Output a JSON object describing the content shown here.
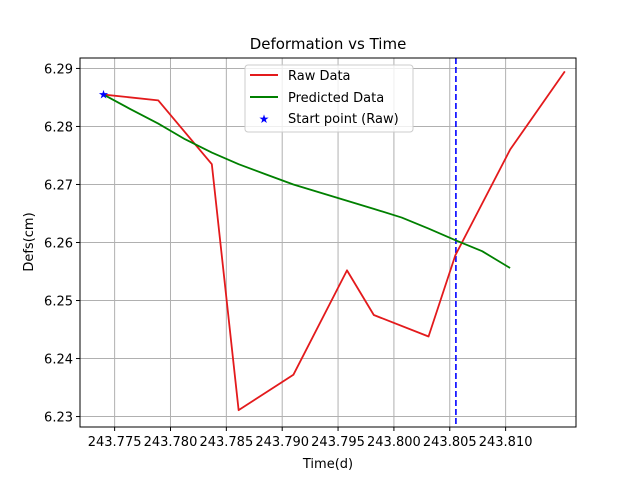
{
  "chart_data": {
    "type": "line",
    "title": "Deformation vs Time",
    "xlabel": "Time(d)",
    "ylabel": "Defs(cm)",
    "xlim": [
      243.7719,
      243.8163
    ],
    "ylim": [
      6.2282,
      6.2918
    ],
    "xticks": [
      243.775,
      243.78,
      243.785,
      243.79,
      243.795,
      243.8,
      243.805,
      243.81
    ],
    "xtick_labels": [
      "243.775",
      "243.780",
      "243.785",
      "243.790",
      "243.795",
      "243.800",
      "243.805",
      "243.810"
    ],
    "yticks": [
      6.23,
      6.24,
      6.25,
      6.26,
      6.27,
      6.28,
      6.29
    ],
    "ytick_labels": [
      "6.23",
      "6.24",
      "6.25",
      "6.26",
      "6.27",
      "6.28",
      "6.29"
    ],
    "grid": true,
    "legend_position": "upper center",
    "series": [
      {
        "name": "Raw Data",
        "color": "#e31a1c",
        "x": [
          243.774,
          243.7789,
          243.7837,
          243.7861,
          243.791,
          243.7958,
          243.7982,
          243.8031,
          243.8055,
          243.8104,
          243.8153
        ],
        "y": [
          6.2855,
          6.2845,
          6.2735,
          6.2311,
          6.2372,
          6.2552,
          6.2475,
          6.2438,
          6.2578,
          6.276,
          6.2895
        ]
      },
      {
        "name": "Predicted Data",
        "color": "#008000",
        "x": [
          243.774,
          243.7764,
          243.7789,
          243.7813,
          243.7837,
          243.7861,
          243.7886,
          243.791,
          243.7934,
          243.7958,
          243.7982,
          243.8007,
          243.8031,
          243.8055,
          243.8079,
          243.8104
        ],
        "y": [
          6.2855,
          6.283,
          6.2805,
          6.2778,
          6.2755,
          6.2735,
          6.2717,
          6.27,
          6.2686,
          6.2672,
          6.2658,
          6.2643,
          6.2624,
          6.2604,
          6.2585,
          6.2556
        ]
      }
    ],
    "start_point": {
      "name": "Start point (Raw)",
      "color": "#0000ff",
      "x": 243.774,
      "y": 6.2855
    },
    "vline": {
      "x": 243.80555,
      "color": "#0000ff",
      "style": "dashed"
    }
  }
}
